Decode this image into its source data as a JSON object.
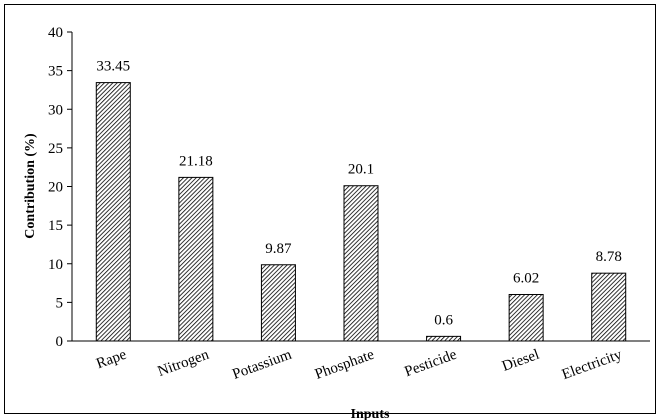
{
  "chart_data": {
    "type": "bar",
    "title": "",
    "xlabel": "Inputs",
    "ylabel": "Contribution (%)",
    "ylim": [
      0,
      40
    ],
    "yticks": [
      0,
      5,
      10,
      15,
      20,
      25,
      30,
      35,
      40
    ],
    "categories": [
      "Rape",
      "Nitrogen",
      "Potassium",
      "Phosphate",
      "Pesticide",
      "Diesel",
      "Electricity"
    ],
    "values": [
      33.45,
      21.18,
      9.87,
      20.1,
      0.6,
      6.02,
      8.78
    ],
    "data_labels": [
      "33.45",
      "21.18",
      "9.87",
      "20.1",
      "0.6",
      "6.02",
      "8.78"
    ],
    "grid": false,
    "legend": "none",
    "bar_pattern": "diagonal-hatch",
    "bar_color": "#000000"
  }
}
